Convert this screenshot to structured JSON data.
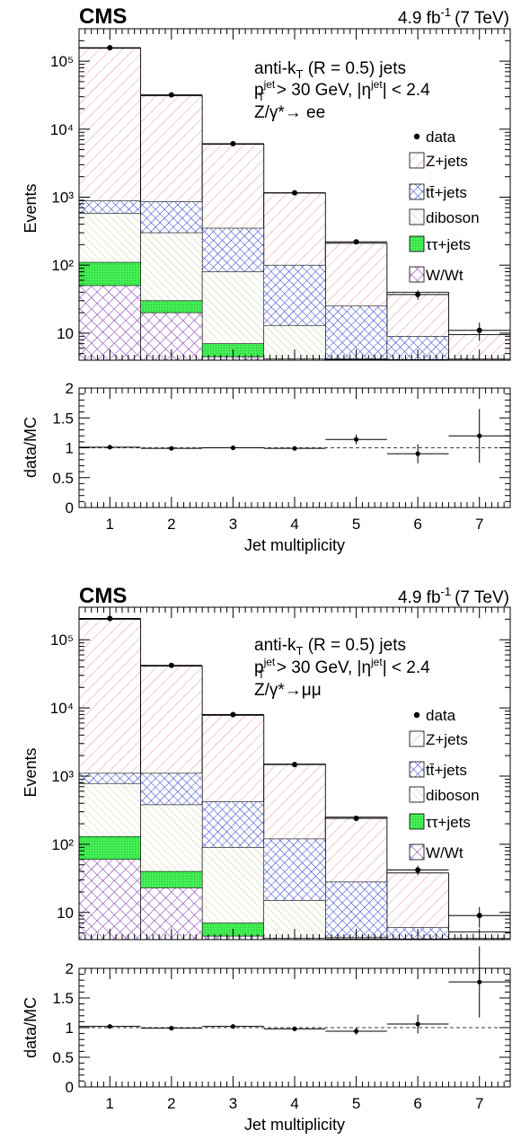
{
  "colors": {
    "zjets": "#e8a0a0",
    "ttbar": "#2233cc",
    "diboson": "#c8c896",
    "tautau": "#44ee55",
    "wwt": "#7722aa",
    "frame": "#000000"
  },
  "chart_data": [
    {
      "type": "bar",
      "stacked": true,
      "log_y": true,
      "experiment": "CMS",
      "lumi_html": "4.9 fb⁻¹ (7 TeV)",
      "lumi_value": "4.9",
      "lumi_unit": "fb",
      "lumi_exp": "-1",
      "lumi_energy": "(7 TeV)",
      "info": {
        "line1a": "anti-k",
        "line1sub": "T",
        "line1b": " (R = 0.5) jets",
        "line2a": "p",
        "line2sup": "jet",
        "line2sub": "T",
        "line2b": " > 30 GeV, |η",
        "line2sup2": "jet",
        "line2c": "| < 2.4",
        "line3": "Z/γ*→ ee"
      },
      "ylabel": "Events",
      "ratio_ylabel": "data/MC",
      "xlabel": "Jet multiplicity",
      "x": [
        1,
        2,
        3,
        4,
        5,
        6,
        7
      ],
      "ylim": [
        4,
        300000
      ],
      "ratio_ylim": [
        0,
        2
      ],
      "y_tick_labels": [
        "10",
        "10²",
        "10³",
        "10⁴",
        "10⁵"
      ],
      "legend": [
        "data",
        "Z+jets",
        "tt̄+jets",
        "diboson",
        "ττ+jets",
        "W/Wt"
      ],
      "legend_placement": "right",
      "stack_totals": {
        "wwt": [
          50,
          20,
          4.5,
          4.2,
          4.1,
          4.05,
          4.02
        ],
        "tautau": [
          110,
          30,
          7,
          4.2,
          4.1,
          4.05,
          4.02
        ],
        "diboson": [
          580,
          300,
          80,
          13,
          4.2,
          4.1,
          4.05
        ],
        "ttbar": [
          880,
          860,
          350,
          100,
          25,
          9,
          4.2
        ],
        "zjets": [
          155000,
          31000,
          6000,
          1150,
          210,
          40,
          9.5
        ]
      },
      "data_values": [
        158000,
        32000,
        6100,
        1160,
        220,
        37,
        11
      ],
      "data_errors": [
        400,
        180,
        80,
        34,
        15,
        6,
        3.3
      ],
      "ratio_values": [
        1.01,
        0.99,
        1.0,
        0.99,
        1.14,
        0.9,
        1.2
      ],
      "ratio_errors": [
        0.01,
        0.01,
        0.02,
        0.03,
        0.08,
        0.16,
        0.45
      ]
    },
    {
      "type": "bar",
      "stacked": true,
      "log_y": true,
      "experiment": "CMS",
      "lumi_value": "4.9",
      "lumi_unit": "fb",
      "lumi_exp": "-1",
      "lumi_energy": "(7 TeV)",
      "info": {
        "line1a": "anti-k",
        "line1sub": "T",
        "line1b": " (R = 0.5) jets",
        "line2a": "p",
        "line2sup": "jet",
        "line2sub": "T",
        "line2b": " > 30 GeV, |η",
        "line2sup2": "jet",
        "line2c": "| < 2.4",
        "line3": "Z/γ*→μμ"
      },
      "ylabel": "Events",
      "ratio_ylabel": "data/MC",
      "xlabel": "Jet multiplicity",
      "x": [
        1,
        2,
        3,
        4,
        5,
        6,
        7
      ],
      "ylim": [
        4,
        300000
      ],
      "ratio_ylim": [
        0,
        2
      ],
      "y_tick_labels": [
        "10",
        "10²",
        "10³",
        "10⁴",
        "10⁵"
      ],
      "legend": [
        "data",
        "Z+jets",
        "tt̄+jets",
        "diboson",
        "ττ+jets",
        "W/Wt"
      ],
      "legend_placement": "right",
      "stack_totals": {
        "wwt": [
          60,
          23,
          4.5,
          4.2,
          4.1,
          4.05,
          4.02
        ],
        "tautau": [
          130,
          40,
          7,
          4.2,
          4.1,
          4.05,
          4.02
        ],
        "diboson": [
          780,
          380,
          90,
          15,
          4.3,
          4.1,
          4.05
        ],
        "ttbar": [
          1100,
          1100,
          420,
          120,
          28,
          6,
          4.2
        ],
        "zjets": [
          200000,
          41000,
          7800,
          1500,
          250,
          38,
          5.2
        ]
      },
      "data_values": [
        205000,
        42000,
        8000,
        1480,
        240,
        42,
        9
      ],
      "data_errors": [
        450,
        205,
        90,
        38,
        16,
        6.5,
        3
      ],
      "ratio_values": [
        1.02,
        0.99,
        1.02,
        0.98,
        0.94,
        1.06,
        1.77
      ],
      "ratio_errors": [
        0.01,
        0.01,
        0.02,
        0.03,
        0.06,
        0.16,
        0.6
      ]
    }
  ]
}
